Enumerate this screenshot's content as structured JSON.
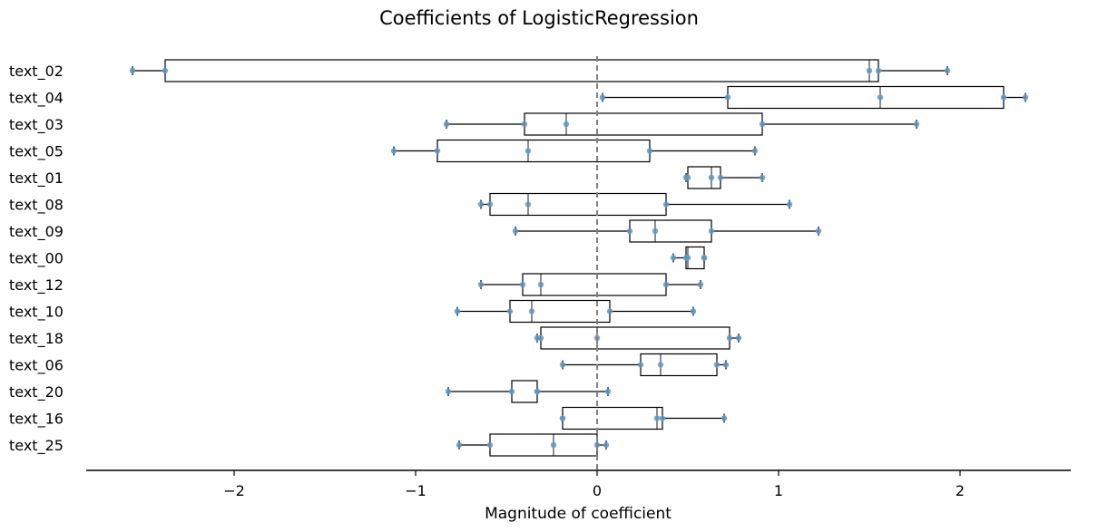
{
  "chart_data": {
    "type": "boxplot",
    "orientation": "horizontal",
    "title": "Coefficients of LogisticRegression",
    "xlabel": "Magnitude of coefficient",
    "ylabel": "",
    "xlim": [
      -2.82,
      2.6
    ],
    "xticks": [
      -2,
      -1,
      0,
      1,
      2
    ],
    "xtick_labels": [
      "−2",
      "−1",
      "0",
      "1",
      "2"
    ],
    "reference_line": {
      "x": 0,
      "style": "dashed",
      "color": "#808080"
    },
    "grid": false,
    "point_color": "#5f96c4",
    "categories": [
      "text_02",
      "text_04",
      "text_03",
      "text_05",
      "text_01",
      "text_08",
      "text_09",
      "text_00",
      "text_12",
      "text_10",
      "text_18",
      "text_06",
      "text_20",
      "text_16",
      "text_25"
    ],
    "boxes": [
      {
        "label": "text_02",
        "whisker_low": -2.56,
        "q1": -2.38,
        "median": 1.5,
        "q3": 1.55,
        "whisker_high": 1.93,
        "points": [
          -2.56,
          -2.38,
          1.5,
          1.55,
          1.93
        ]
      },
      {
        "label": "text_04",
        "whisker_low": 0.03,
        "q1": 0.72,
        "median": 1.56,
        "q3": 2.24,
        "whisker_high": 2.36,
        "points": [
          0.03,
          0.72,
          1.56,
          2.24,
          2.36
        ]
      },
      {
        "label": "text_03",
        "whisker_low": -0.83,
        "q1": -0.4,
        "median": -0.17,
        "q3": 0.91,
        "whisker_high": 1.76,
        "points": [
          -0.83,
          -0.4,
          -0.17,
          0.91,
          1.76
        ]
      },
      {
        "label": "text_05",
        "whisker_low": -1.12,
        "q1": -0.88,
        "median": -0.38,
        "q3": 0.29,
        "whisker_high": 0.87,
        "points": [
          -1.12,
          -0.88,
          -0.38,
          0.29,
          0.87
        ]
      },
      {
        "label": "text_01",
        "whisker_low": 0.49,
        "q1": 0.5,
        "median": 0.63,
        "q3": 0.68,
        "whisker_high": 0.91,
        "points": [
          0.49,
          0.5,
          0.63,
          0.68,
          0.91
        ]
      },
      {
        "label": "text_08",
        "whisker_low": -0.64,
        "q1": -0.59,
        "median": -0.38,
        "q3": 0.38,
        "whisker_high": 1.06,
        "points": [
          -0.64,
          -0.59,
          -0.38,
          0.38,
          1.06
        ]
      },
      {
        "label": "text_09",
        "whisker_low": -0.45,
        "q1": 0.18,
        "median": 0.32,
        "q3": 0.63,
        "whisker_high": 1.22,
        "points": [
          -0.45,
          0.18,
          0.32,
          0.63,
          1.22
        ]
      },
      {
        "label": "text_00",
        "whisker_low": 0.42,
        "q1": 0.49,
        "median": 0.5,
        "q3": 0.59,
        "whisker_high": 0.59,
        "points": [
          0.42,
          0.49,
          0.5,
          0.59,
          0.59
        ]
      },
      {
        "label": "text_12",
        "whisker_low": -0.64,
        "q1": -0.41,
        "median": -0.31,
        "q3": 0.38,
        "whisker_high": 0.57,
        "points": [
          -0.64,
          -0.41,
          -0.31,
          0.38,
          0.57
        ]
      },
      {
        "label": "text_10",
        "whisker_low": -0.77,
        "q1": -0.48,
        "median": -0.36,
        "q3": 0.07,
        "whisker_high": 0.53,
        "points": [
          -0.77,
          -0.48,
          -0.36,
          0.07,
          0.53
        ]
      },
      {
        "label": "text_18",
        "whisker_low": -0.33,
        "q1": -0.31,
        "median": 0.0,
        "q3": 0.73,
        "whisker_high": 0.78,
        "points": [
          -0.33,
          -0.31,
          0.0,
          0.73,
          0.78
        ]
      },
      {
        "label": "text_06",
        "whisker_low": -0.19,
        "q1": 0.24,
        "median": 0.35,
        "q3": 0.66,
        "whisker_high": 0.71,
        "points": [
          -0.19,
          0.24,
          0.35,
          0.66,
          0.71
        ]
      },
      {
        "label": "text_20",
        "whisker_low": -0.82,
        "q1": -0.47,
        "median": -0.33,
        "q3": -0.33,
        "whisker_high": 0.06,
        "points": [
          -0.82,
          -0.47,
          -0.33,
          -0.33,
          0.06
        ]
      },
      {
        "label": "text_16",
        "whisker_low": -0.19,
        "q1": -0.19,
        "median": 0.33,
        "q3": 0.36,
        "whisker_high": 0.7,
        "points": [
          -0.19,
          -0.19,
          0.33,
          0.36,
          0.7
        ]
      },
      {
        "label": "text_25",
        "whisker_low": -0.76,
        "q1": -0.59,
        "median": -0.24,
        "q3": 0.0,
        "whisker_high": 0.05,
        "points": [
          -0.76,
          -0.59,
          -0.24,
          0.0,
          0.05
        ]
      }
    ]
  }
}
